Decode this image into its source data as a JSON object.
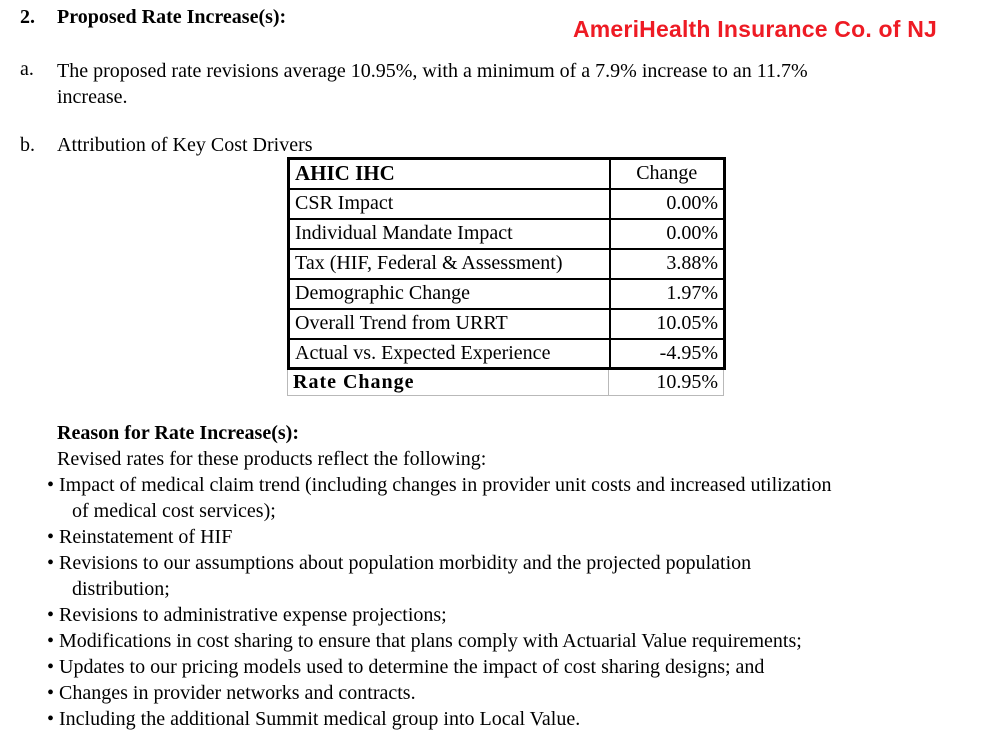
{
  "document": {
    "section_number": "2.",
    "section_title": "Proposed Rate Increase(s):",
    "brand_name": "AmeriHealth Insurance Co. of NJ",
    "brand_color": "#ee1b24",
    "item_a_label": "a.",
    "item_a_line1": "The proposed rate revisions average 10.95%, with a minimum of a 7.9% increase to an 11.7%",
    "item_a_line2": "increase.",
    "item_b_label": "b.",
    "item_b_text": "Attribution of Key Cost Drivers"
  },
  "cost_drivers_table": {
    "header": {
      "driver": "AHIC IHC",
      "change": "Change"
    },
    "rows": [
      {
        "driver": "CSR Impact",
        "change": "0.00%"
      },
      {
        "driver": "Individual Mandate Impact",
        "change": "0.00%"
      },
      {
        "driver": "Tax (HIF, Federal & Assessment)",
        "change": "3.88%"
      },
      {
        "driver": "Demographic Change",
        "change": "1.97%"
      },
      {
        "driver": "Overall Trend from URRT",
        "change": "10.05%"
      },
      {
        "driver": "Actual vs. Expected Experience",
        "change": "-4.95%"
      }
    ],
    "total": {
      "driver": "Rate Change",
      "change": "10.95%"
    }
  },
  "reason": {
    "heading": "Reason for Rate Increase(s):",
    "intro": "Revised rates for these products reflect the following:",
    "bullets": [
      {
        "line1": "Impact of medical claim trend (including changes in provider unit costs and increased utilization",
        "line2": "of medical cost services);"
      },
      {
        "line1": "Reinstatement of HIF"
      },
      {
        "line1": "Revisions to our assumptions about population morbidity and the projected population",
        "line2": "distribution;"
      },
      {
        "line1": "Revisions to administrative expense projections;"
      },
      {
        "line1": "Modifications in cost sharing to ensure that plans comply with Actuarial Value requirements;"
      },
      {
        "line1": "Updates to our pricing models used to determine the impact of cost sharing designs; and"
      },
      {
        "line1": "Changes in provider networks and contracts."
      },
      {
        "line1": "Including the additional Summit medical group into Local Value."
      }
    ]
  }
}
